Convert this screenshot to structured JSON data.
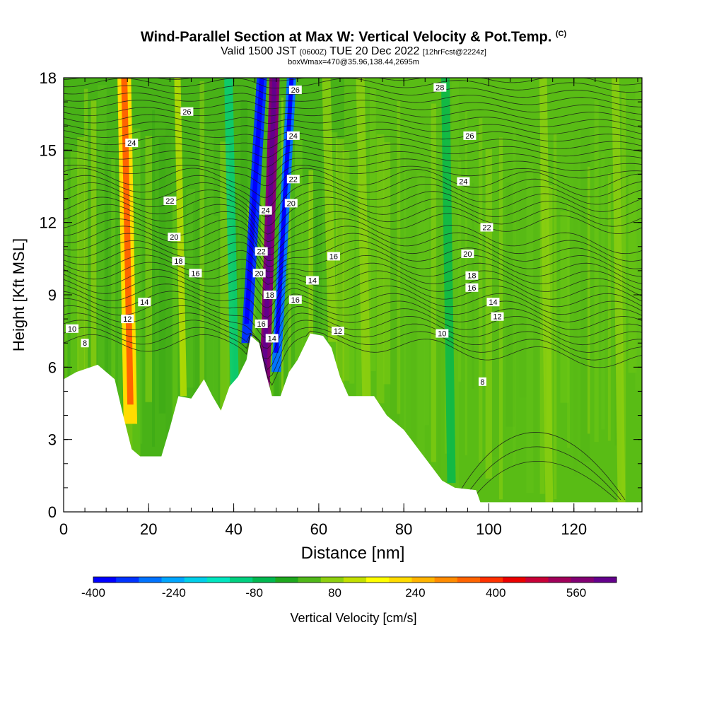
{
  "title": {
    "main": "Wind-Parallel Section at Max W: Vertical Velocity & Pot.Temp.",
    "copyright": "(C)",
    "valid_prefix": "Valid 1500 JST",
    "valid_utc": "(0600Z)",
    "valid_date": "TUE 20 Dec 2022",
    "forecast": "[12hrFcst@2224z]",
    "box": "boxWmax=470@35.96,138.44,2695m"
  },
  "chart_data": {
    "type": "heatmap",
    "xlabel": "Distance [nm]",
    "ylabel": "Height [Kft MSL]",
    "xlim": [
      0,
      136
    ],
    "ylim": [
      0,
      18
    ],
    "x_ticks": [
      0,
      20,
      40,
      60,
      80,
      100,
      120
    ],
    "y_ticks": [
      0,
      3,
      6,
      9,
      12,
      15,
      18
    ],
    "colorbar": {
      "label": "Vertical Velocity [cm/s]",
      "tick_labels": [
        -400,
        -240,
        -80,
        80,
        240,
        400,
        560
      ],
      "range": [
        -400,
        640
      ],
      "colors": [
        "#0000ff",
        "#0033ff",
        "#0073ff",
        "#00a6ff",
        "#00cfea",
        "#00e6c0",
        "#00d080",
        "#00b850",
        "#1ea81e",
        "#50b819",
        "#8ed00f",
        "#c3e000",
        "#ffff00",
        "#ffdc00",
        "#ffb400",
        "#ff8c00",
        "#ff6400",
        "#ff3200",
        "#eb0000",
        "#c80037",
        "#a0005a",
        "#820073",
        "#64008c"
      ]
    },
    "velocity_bands": [
      {
        "x": 14.5,
        "width": 3.2,
        "value": 220
      },
      {
        "x": 27,
        "width": 1.5,
        "value": 110
      },
      {
        "x": 39,
        "width": 2.0,
        "value": -100
      },
      {
        "x": 46,
        "width": 2.4,
        "value": -350
      },
      {
        "x": 49.2,
        "width": 2.4,
        "value": 580
      },
      {
        "x": 53,
        "width": 2.2,
        "value": -300
      },
      {
        "x": 62,
        "width": 2.0,
        "value": 60
      },
      {
        "x": 70,
        "width": 2.0,
        "value": 70
      },
      {
        "x": 90,
        "width": 2.0,
        "value": -60
      },
      {
        "x": 113,
        "width": 1.8,
        "value": 90
      },
      {
        "x": 130,
        "width": 1.8,
        "value": 90
      }
    ],
    "terrain": [
      {
        "x": 0,
        "y": 5.5
      },
      {
        "x": 3,
        "y": 5.8
      },
      {
        "x": 8,
        "y": 6.1
      },
      {
        "x": 12,
        "y": 5.5
      },
      {
        "x": 14,
        "y": 4.0
      },
      {
        "x": 16,
        "y": 2.6
      },
      {
        "x": 18,
        "y": 2.3
      },
      {
        "x": 23,
        "y": 2.3
      },
      {
        "x": 25,
        "y": 3.5
      },
      {
        "x": 27,
        "y": 4.8
      },
      {
        "x": 30,
        "y": 4.7
      },
      {
        "x": 33,
        "y": 5.5
      },
      {
        "x": 35,
        "y": 4.8
      },
      {
        "x": 37,
        "y": 4.2
      },
      {
        "x": 39,
        "y": 5.2
      },
      {
        "x": 41,
        "y": 5.6
      },
      {
        "x": 43,
        "y": 6.3
      },
      {
        "x": 44,
        "y": 7.3
      },
      {
        "x": 46,
        "y": 7.0
      },
      {
        "x": 47.5,
        "y": 5.8
      },
      {
        "x": 49,
        "y": 4.8
      },
      {
        "x": 51,
        "y": 4.8
      },
      {
        "x": 53,
        "y": 5.8
      },
      {
        "x": 55,
        "y": 6.3
      },
      {
        "x": 58,
        "y": 7.4
      },
      {
        "x": 61,
        "y": 7.3
      },
      {
        "x": 63,
        "y": 6.8
      },
      {
        "x": 65,
        "y": 5.6
      },
      {
        "x": 67,
        "y": 4.8
      },
      {
        "x": 73,
        "y": 4.8
      },
      {
        "x": 76,
        "y": 4.0
      },
      {
        "x": 80,
        "y": 3.4
      },
      {
        "x": 83,
        "y": 2.7
      },
      {
        "x": 86,
        "y": 2.0
      },
      {
        "x": 89,
        "y": 1.3
      },
      {
        "x": 92,
        "y": 1.0
      },
      {
        "x": 97,
        "y": 0.9
      },
      {
        "x": 98,
        "y": 0.4
      },
      {
        "x": 136,
        "y": 0.4
      }
    ],
    "theta_labels": [
      {
        "x": 2,
        "y": 7.6,
        "text": "10"
      },
      {
        "x": 5,
        "y": 7.0,
        "text": "8"
      },
      {
        "x": 15,
        "y": 8.0,
        "text": "12"
      },
      {
        "x": 19,
        "y": 8.7,
        "text": "14"
      },
      {
        "x": 31,
        "y": 9.9,
        "text": "16"
      },
      {
        "x": 27,
        "y": 10.4,
        "text": "18"
      },
      {
        "x": 26,
        "y": 11.4,
        "text": "20"
      },
      {
        "x": 25,
        "y": 12.9,
        "text": "22"
      },
      {
        "x": 16,
        "y": 15.3,
        "text": "24"
      },
      {
        "x": 29,
        "y": 16.6,
        "text": "26"
      },
      {
        "x": 46.5,
        "y": 7.8,
        "text": "16"
      },
      {
        "x": 46,
        "y": 9.9,
        "text": "20"
      },
      {
        "x": 46.5,
        "y": 10.8,
        "text": "22"
      },
      {
        "x": 47.5,
        "y": 12.5,
        "text": "24"
      },
      {
        "x": 49,
        "y": 7.2,
        "text": "14"
      },
      {
        "x": 48.5,
        "y": 9.0,
        "text": "18"
      },
      {
        "x": 53.5,
        "y": 12.8,
        "text": "20"
      },
      {
        "x": 54,
        "y": 13.8,
        "text": "22"
      },
      {
        "x": 54,
        "y": 15.6,
        "text": "24"
      },
      {
        "x": 54.5,
        "y": 17.5,
        "text": "26"
      },
      {
        "x": 54.5,
        "y": 8.8,
        "text": "16"
      },
      {
        "x": 58.5,
        "y": 9.6,
        "text": "14"
      },
      {
        "x": 63.5,
        "y": 10.6,
        "text": "16"
      },
      {
        "x": 64.5,
        "y": 7.5,
        "text": "12"
      },
      {
        "x": 88.5,
        "y": 17.6,
        "text": "28"
      },
      {
        "x": 95.5,
        "y": 15.6,
        "text": "26"
      },
      {
        "x": 94,
        "y": 13.7,
        "text": "24"
      },
      {
        "x": 99.5,
        "y": 11.8,
        "text": "22"
      },
      {
        "x": 95,
        "y": 10.7,
        "text": "20"
      },
      {
        "x": 96,
        "y": 9.8,
        "text": "18"
      },
      {
        "x": 96,
        "y": 9.3,
        "text": "16"
      },
      {
        "x": 101,
        "y": 8.7,
        "text": "14"
      },
      {
        "x": 102,
        "y": 8.1,
        "text": "12"
      },
      {
        "x": 89,
        "y": 7.4,
        "text": "10"
      },
      {
        "x": 98.5,
        "y": 5.4,
        "text": "8"
      }
    ]
  }
}
